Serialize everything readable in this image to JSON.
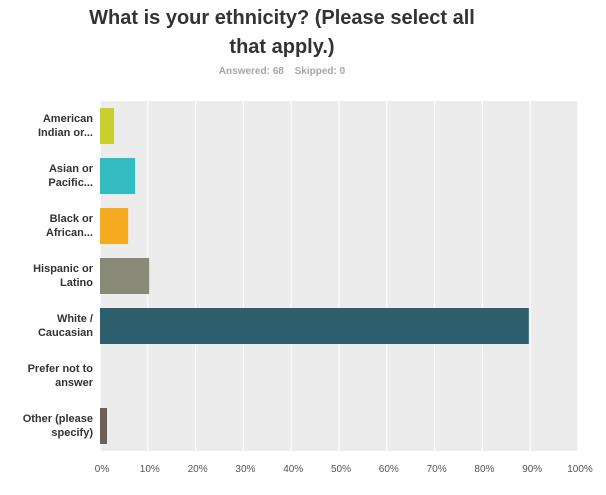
{
  "header": {
    "title_line1": "What is your ethnicity? (Please select all",
    "title_line2": "that apply.)",
    "answered_label": "Answered: 68",
    "skipped_label": "Skipped: 0"
  },
  "chart_data": {
    "type": "bar",
    "orientation": "horizontal",
    "title": "What is your ethnicity? (Please select all that apply.)",
    "categories": [
      [
        "American",
        "Indian or..."
      ],
      [
        "Asian or",
        "Pacific..."
      ],
      [
        "Black or",
        "African..."
      ],
      [
        "Hispanic or",
        "Latino"
      ],
      [
        "White /",
        "Caucasian"
      ],
      [
        "Prefer not to",
        "answer"
      ],
      [
        "Other (please",
        "specify)"
      ]
    ],
    "values": [
      2.94,
      7.35,
      5.88,
      10.29,
      89.71,
      0,
      1.47
    ],
    "colors": [
      "#c9d02e",
      "#33bcc1",
      "#f5ab1f",
      "#8a8a78",
      "#2c5f6b",
      "#cccccc",
      "#6b6158"
    ],
    "xlim": [
      0,
      100
    ],
    "xticks": [
      "0%",
      "10%",
      "20%",
      "30%",
      "40%",
      "50%",
      "60%",
      "70%",
      "80%",
      "90%",
      "100%"
    ],
    "grid": true,
    "xlabel": "",
    "ylabel": ""
  }
}
